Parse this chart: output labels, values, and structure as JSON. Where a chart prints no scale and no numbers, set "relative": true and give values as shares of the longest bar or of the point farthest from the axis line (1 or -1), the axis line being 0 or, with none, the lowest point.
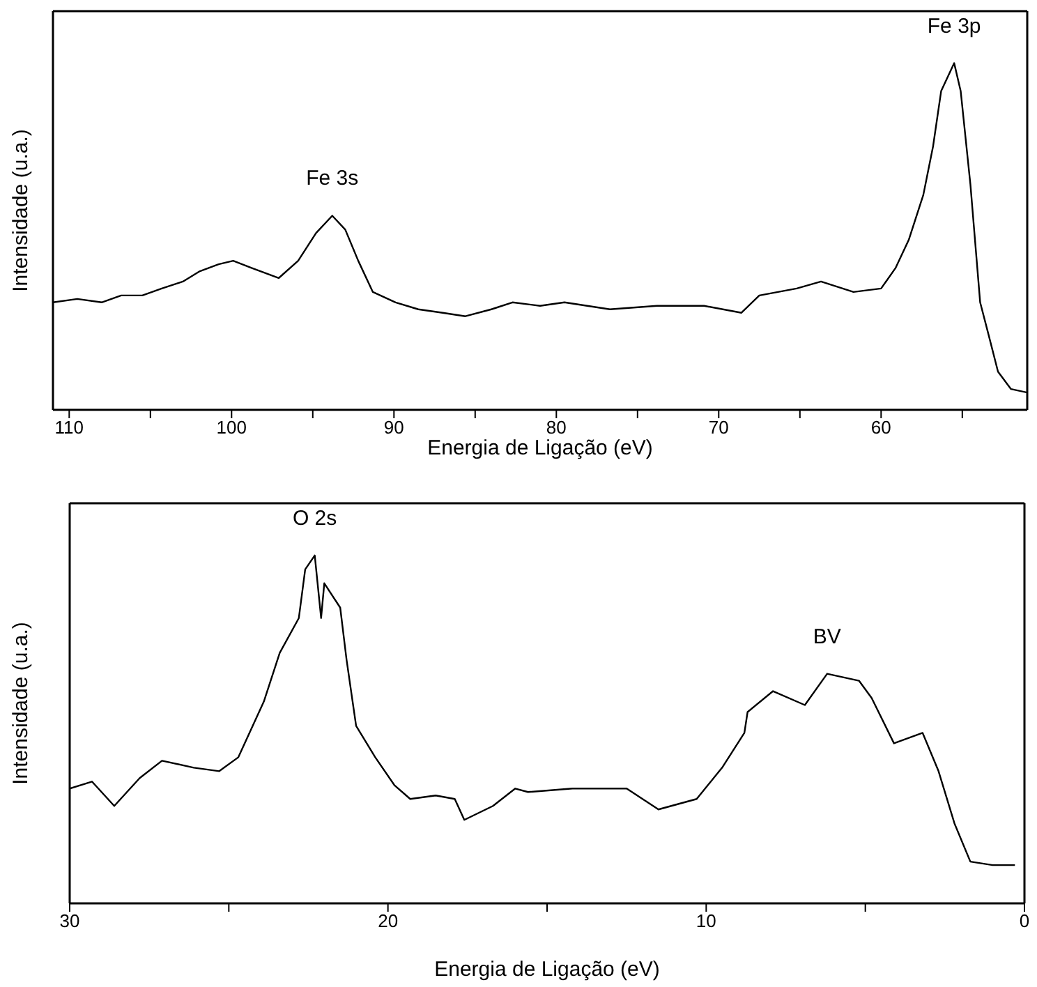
{
  "chart_data": [
    {
      "type": "line",
      "xlabel": "Energia de Ligação (eV)",
      "ylabel": "Intensidade (u.a.)",
      "relative": true,
      "tick_labels": "x",
      "color": "#000000",
      "xlim": [
        111,
        51
      ],
      "xticks": [
        110,
        {
          "value": 105,
          "label": null
        },
        100,
        {
          "value": 95,
          "label": null
        },
        90,
        {
          "value": 85,
          "label": null
        },
        80,
        {
          "value": 75,
          "label": null
        },
        70,
        {
          "value": 65,
          "label": null
        },
        60,
        {
          "value": 55,
          "label": null
        }
      ],
      "x": [
        111.0,
        109.5,
        108.0,
        106.8,
        105.5,
        104.3,
        103.0,
        101.95,
        100.8,
        99.9,
        98.8,
        97.1,
        95.9,
        94.8,
        93.8,
        93.0,
        92.2,
        91.3,
        89.9,
        88.5,
        87.0,
        85.6,
        84.0,
        82.7,
        81.0,
        79.5,
        76.7,
        73.8,
        70.9,
        68.6,
        67.5,
        65.2,
        63.7,
        61.7,
        60.0,
        59.1,
        58.3,
        57.4,
        56.8,
        56.3,
        55.5,
        55.1,
        54.5,
        53.9,
        53.4,
        52.8,
        52.0,
        51.0
      ],
      "values": [
        0.31,
        0.32,
        0.31,
        0.33,
        0.33,
        0.35,
        0.37,
        0.4,
        0.42,
        0.43,
        0.41,
        0.38,
        0.43,
        0.51,
        0.56,
        0.52,
        0.43,
        0.34,
        0.31,
        0.29,
        0.28,
        0.27,
        0.29,
        0.31,
        0.3,
        0.31,
        0.29,
        0.3,
        0.3,
        0.28,
        0.33,
        0.35,
        0.37,
        0.34,
        0.35,
        0.41,
        0.49,
        0.62,
        0.76,
        0.92,
        1.0,
        0.92,
        0.65,
        0.31,
        0.22,
        0.11,
        0.06,
        0.05
      ],
      "annotations": [
        {
          "text": "Fe 3s",
          "x": 93.8,
          "y": 0.56
        },
        {
          "text": "Fe 3p",
          "x": 55.5,
          "y": 1.0
        }
      ]
    },
    {
      "type": "line",
      "xlabel": "Energia de Ligação (eV)",
      "ylabel": "Intensidade (u.a.)",
      "relative": true,
      "tick_labels": "x",
      "color": "#000000",
      "xlim": [
        30,
        0
      ],
      "xticks": [
        30,
        {
          "value": 25,
          "label": null
        },
        20,
        {
          "value": 15,
          "label": null
        },
        10,
        {
          "value": 5,
          "label": null
        },
        0
      ],
      "x": [
        30.0,
        29.3,
        28.6,
        27.8,
        27.1,
        26.1,
        25.3,
        24.7,
        23.9,
        23.4,
        22.8,
        22.6,
        22.3,
        22.1,
        22.0,
        21.5,
        21.3,
        21.0,
        20.4,
        19.8,
        19.3,
        18.5,
        17.9,
        17.6,
        16.7,
        16.0,
        15.6,
        14.2,
        12.5,
        11.5,
        10.3,
        9.5,
        8.8,
        8.7,
        7.9,
        6.9,
        6.2,
        5.2,
        4.8,
        4.1,
        3.2,
        2.7,
        2.2,
        1.7,
        1.0,
        0.3
      ],
      "values": [
        0.33,
        0.35,
        0.28,
        0.36,
        0.41,
        0.39,
        0.38,
        0.42,
        0.58,
        0.72,
        0.82,
        0.96,
        1.0,
        0.82,
        0.92,
        0.85,
        0.7,
        0.51,
        0.42,
        0.34,
        0.3,
        0.31,
        0.3,
        0.24,
        0.28,
        0.33,
        0.32,
        0.33,
        0.33,
        0.27,
        0.3,
        0.39,
        0.49,
        0.55,
        0.61,
        0.57,
        0.66,
        0.64,
        0.59,
        0.46,
        0.49,
        0.38,
        0.23,
        0.12,
        0.11,
        0.11
      ],
      "annotations": [
        {
          "text": "O 2s",
          "x": 22.3,
          "y": 1.0
        },
        {
          "text": "BV",
          "x": 6.2,
          "y": 0.66
        }
      ]
    }
  ]
}
